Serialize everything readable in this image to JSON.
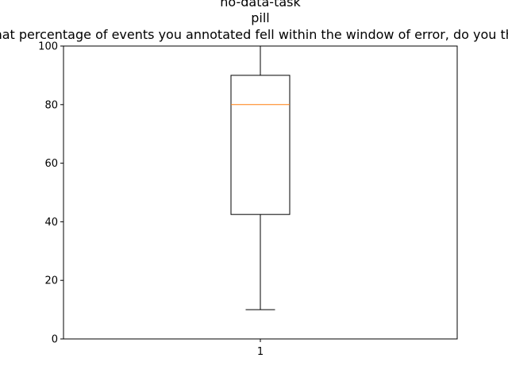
{
  "chart_data": {
    "type": "box",
    "title_lines": [
      "no-data-task",
      "pill",
      "What percentage of events you annotated fell within the window of error, do you think?"
    ],
    "categories": [
      "1"
    ],
    "ylim": [
      0,
      100
    ],
    "yticks": [
      0,
      20,
      40,
      60,
      80,
      100
    ],
    "grid": false,
    "box": {
      "whisker_low": 10,
      "q1": 42.5,
      "median": 80,
      "q3": 90,
      "whisker_high": 100
    },
    "colors": {
      "box": "#000000",
      "median": "#ff7f0e"
    }
  }
}
